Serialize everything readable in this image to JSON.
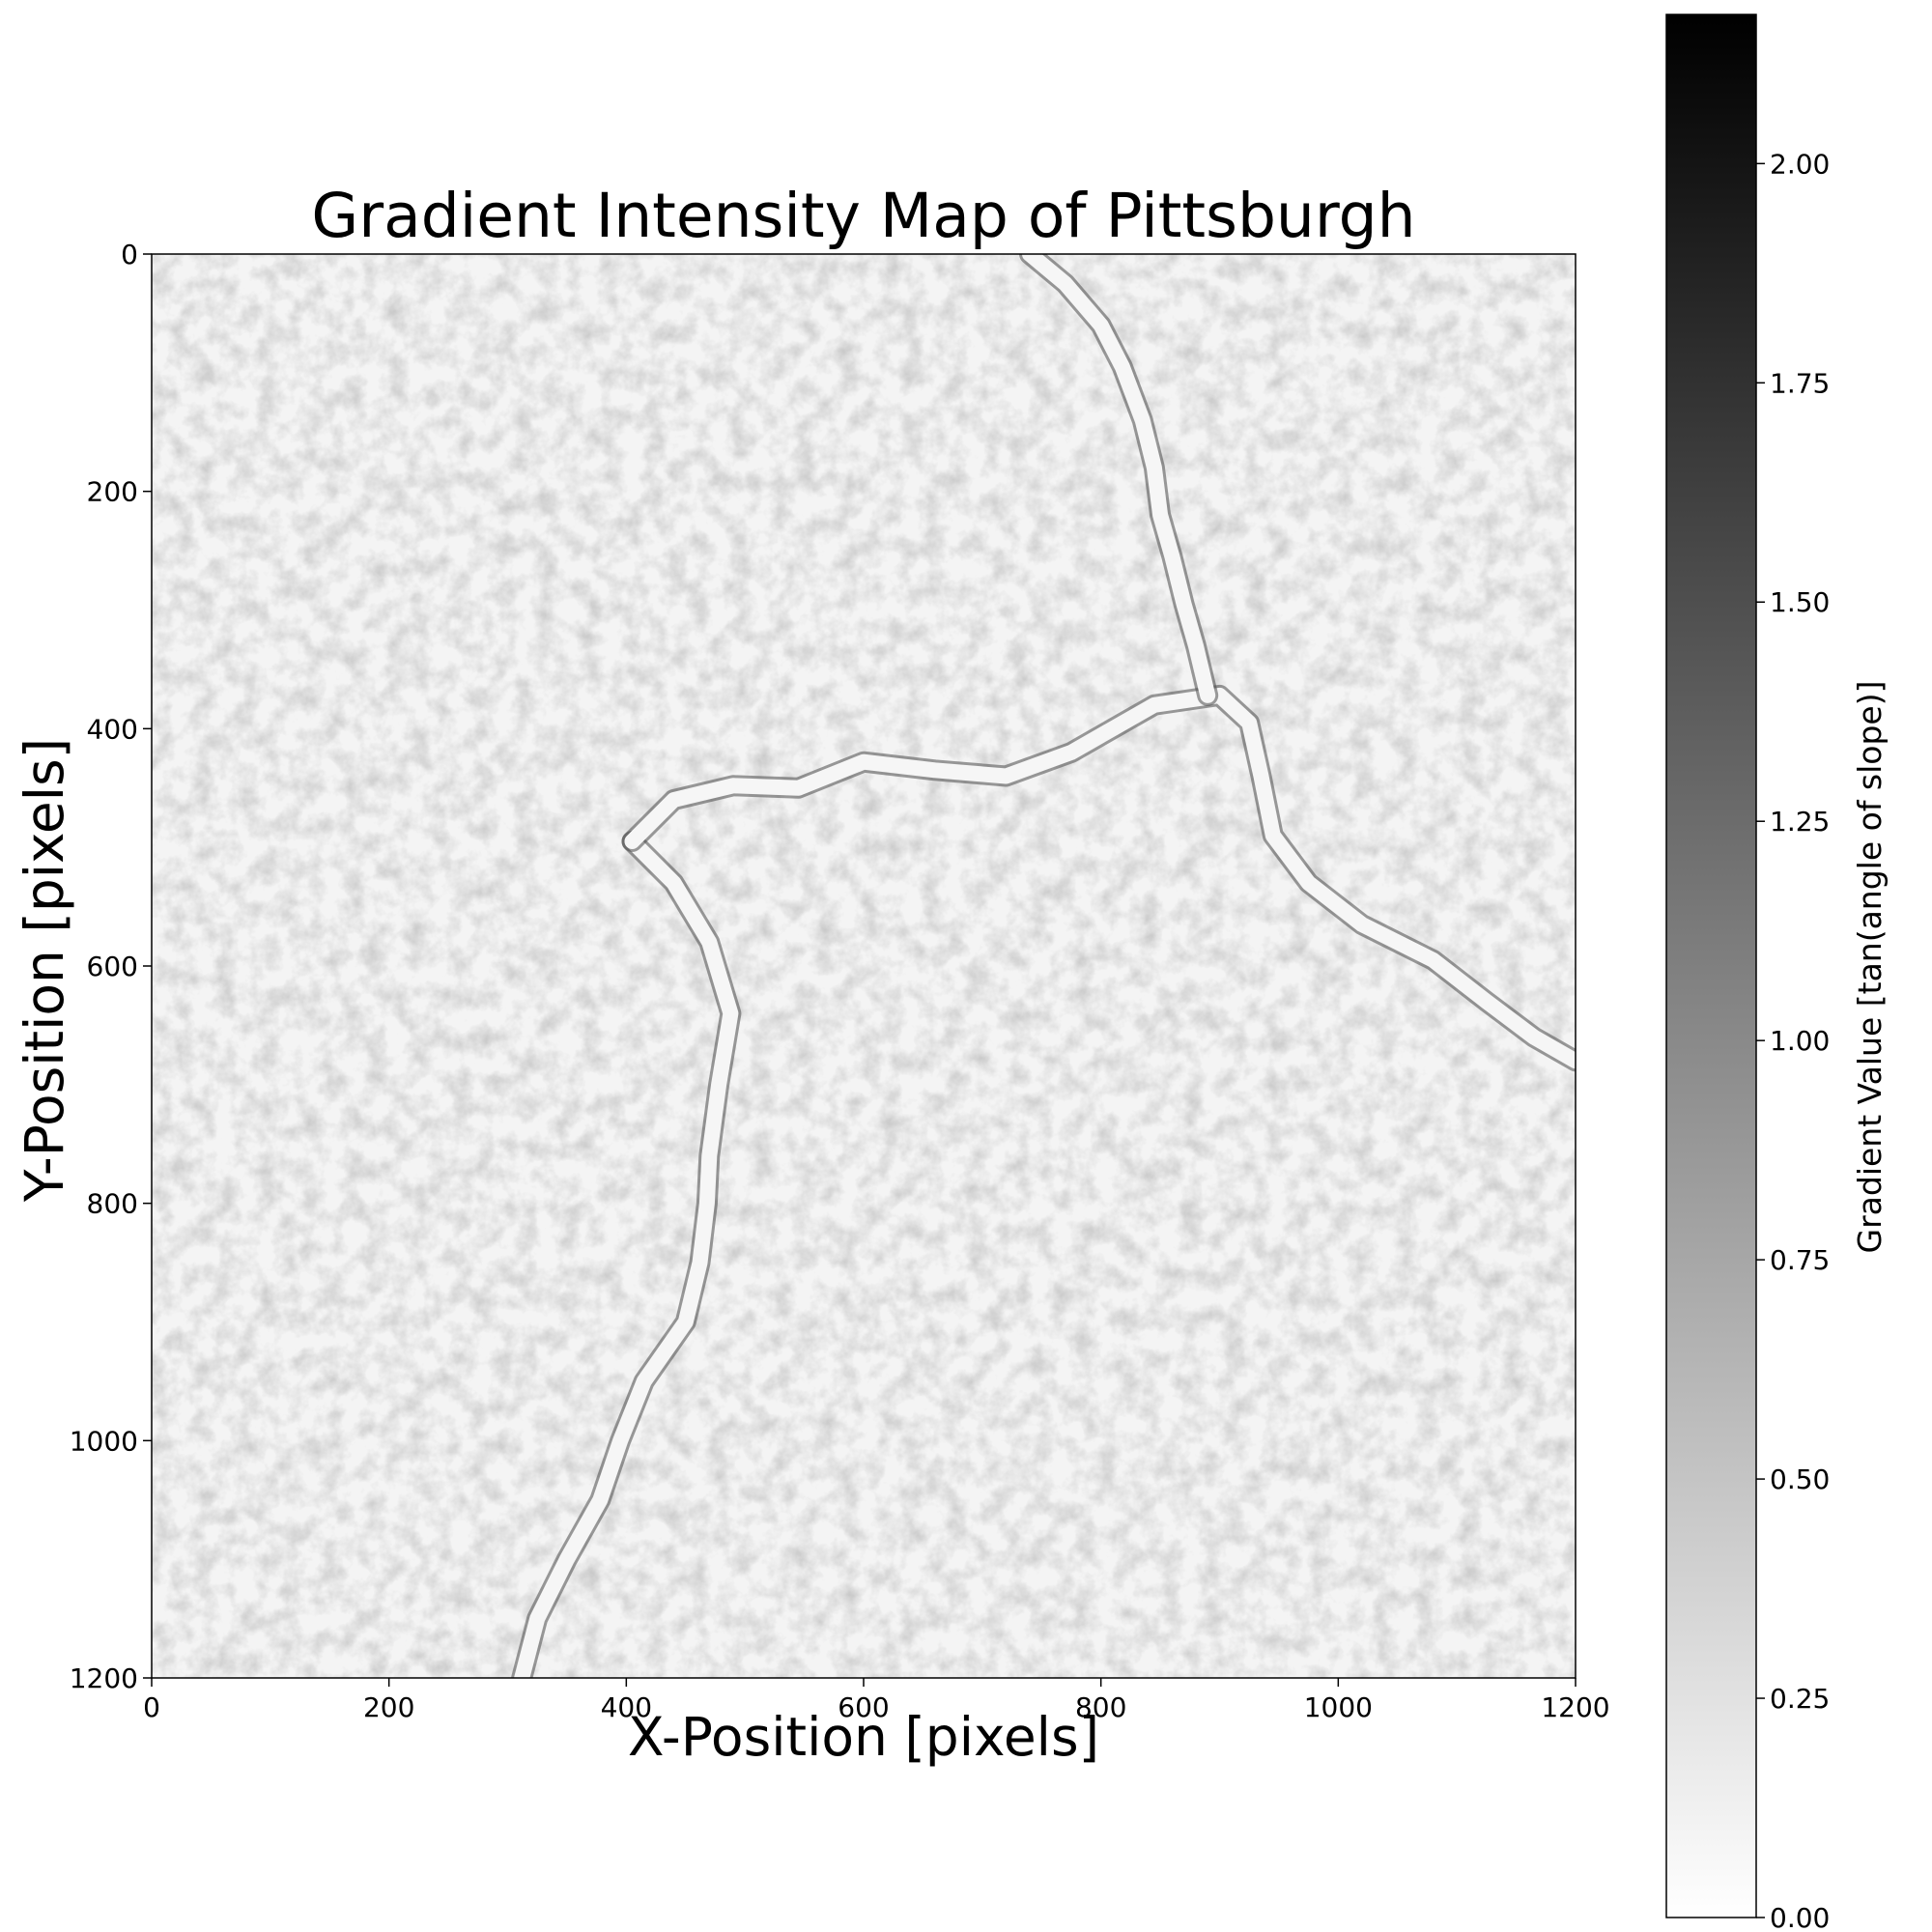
{
  "chart_data": {
    "type": "heatmap",
    "title": "Gradient Intensity Map of Pittsburgh",
    "xlabel": "X-Position [pixels]",
    "ylabel": "Y-Position [pixels]",
    "xlim": [
      0,
      1200
    ],
    "ylim": [
      1200,
      0
    ],
    "xticks": [
      0,
      200,
      400,
      600,
      800,
      1000,
      1200
    ],
    "yticks": [
      0,
      200,
      400,
      600,
      800,
      1000,
      1200
    ],
    "colormap": "gray_r",
    "colorbar": {
      "label": "Gradient Value [tan(angle of slope)]",
      "range": [
        0,
        2.17
      ],
      "ticks": [
        "0.00",
        "0.25",
        "0.50",
        "0.75",
        "1.00",
        "1.25",
        "1.50",
        "1.75",
        "2.00"
      ]
    },
    "features": {
      "rivers": [
        {
          "path": [
            [
              312,
              1200
            ],
            [
              325,
              1150
            ],
            [
              350,
              1100
            ],
            [
              378,
              1050
            ],
            [
              395,
              1000
            ],
            [
              415,
              950
            ],
            [
              450,
              900
            ],
            [
              462,
              850
            ],
            [
              468,
              800
            ],
            [
              470,
              760
            ],
            [
              478,
              700
            ],
            [
              488,
              640
            ],
            [
              470,
              580
            ],
            [
              440,
              530
            ],
            [
              405,
              495
            ]
          ]
        },
        {
          "path": [
            [
              405,
              495
            ],
            [
              440,
              460
            ],
            [
              490,
              448
            ],
            [
              545,
              450
            ],
            [
              600,
              428
            ],
            [
              660,
              435
            ],
            [
              720,
              440
            ],
            [
              775,
              420
            ],
            [
              845,
              380
            ],
            [
              900,
              372
            ],
            [
              925,
              395
            ],
            [
              935,
              440
            ],
            [
              945,
              490
            ],
            [
              975,
              530
            ],
            [
              1020,
              565
            ],
            [
              1080,
              595
            ],
            [
              1125,
              630
            ],
            [
              1165,
              660
            ],
            [
              1200,
              680
            ]
          ]
        },
        {
          "path": [
            [
              890,
              372
            ],
            [
              880,
              330
            ],
            [
              870,
              295
            ],
            [
              860,
              255
            ],
            [
              850,
              220
            ],
            [
              845,
              180
            ],
            [
              835,
              140
            ],
            [
              818,
              95
            ],
            [
              800,
              60
            ],
            [
              770,
              25
            ],
            [
              740,
              0
            ]
          ]
        }
      ]
    }
  }
}
